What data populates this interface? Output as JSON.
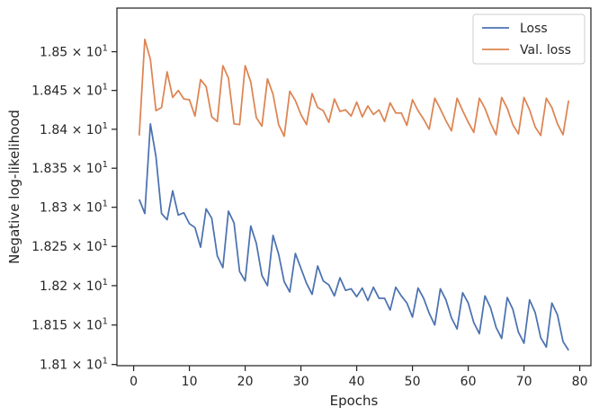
{
  "chart_data": {
    "type": "line",
    "xlabel": "Epochs",
    "ylabel": "Negative log-likelihood",
    "xlim": [
      -3,
      82
    ],
    "ylim": [
      18.0985,
      18.5565
    ],
    "y_scale": "log",
    "grid": false,
    "legend_position": "top-right",
    "x_ticks": [
      0,
      10,
      20,
      30,
      40,
      50,
      60,
      70,
      80
    ],
    "x_tick_labels": [
      "0",
      "10",
      "20",
      "30",
      "40",
      "50",
      "60",
      "70",
      "80"
    ],
    "y_ticks": [
      18.1,
      18.15,
      18.2,
      18.25,
      18.3,
      18.35,
      18.4,
      18.45,
      18.5
    ],
    "y_tick_mantissas": [
      "1.81",
      "1.815",
      "1.82",
      "1.825",
      "1.83",
      "1.835",
      "1.84",
      "1.845",
      "1.85"
    ],
    "y_tick_base": "× 10",
    "y_tick_exponent": "1",
    "x": [
      1,
      2,
      3,
      4,
      5,
      6,
      7,
      8,
      9,
      10,
      11,
      12,
      13,
      14,
      15,
      16,
      17,
      18,
      19,
      20,
      21,
      22,
      23,
      24,
      25,
      26,
      27,
      28,
      29,
      30,
      31,
      32,
      33,
      34,
      35,
      36,
      37,
      38,
      39,
      40,
      41,
      42,
      43,
      44,
      45,
      46,
      47,
      48,
      49,
      50,
      51,
      52,
      53,
      54,
      55,
      56,
      57,
      58,
      59,
      60,
      61,
      62,
      63,
      64,
      65,
      66,
      67,
      68,
      69,
      70,
      71,
      72,
      73,
      74,
      75,
      76,
      77,
      78
    ],
    "series": [
      {
        "name": "Loss",
        "color": "#4c72b0",
        "values": [
          18.31,
          18.292,
          18.407,
          18.365,
          18.292,
          18.284,
          18.321,
          18.29,
          18.293,
          18.279,
          18.274,
          18.249,
          18.298,
          18.286,
          18.238,
          18.223,
          18.295,
          18.28,
          18.218,
          18.206,
          18.276,
          18.254,
          18.213,
          18.2,
          18.264,
          18.24,
          18.205,
          18.192,
          18.241,
          18.222,
          18.203,
          18.189,
          18.225,
          18.206,
          18.201,
          18.187,
          18.21,
          18.194,
          18.196,
          18.186,
          18.197,
          18.181,
          18.198,
          18.184,
          18.184,
          18.169,
          18.198,
          18.187,
          18.178,
          18.16,
          18.197,
          18.184,
          18.165,
          18.15,
          18.196,
          18.182,
          18.159,
          18.145,
          18.191,
          18.178,
          18.153,
          18.139,
          18.187,
          18.172,
          18.147,
          18.133,
          18.185,
          18.17,
          18.141,
          18.127,
          18.182,
          18.166,
          18.134,
          18.122,
          18.178,
          18.163,
          18.129,
          18.118
        ]
      },
      {
        "name": "Val. loss",
        "color": "#dd8452",
        "values": [
          18.392,
          18.516,
          18.49,
          18.424,
          18.428,
          18.474,
          18.441,
          18.45,
          18.439,
          18.438,
          18.417,
          18.464,
          18.455,
          18.416,
          18.41,
          18.482,
          18.466,
          18.407,
          18.406,
          18.482,
          18.461,
          18.415,
          18.404,
          18.465,
          18.445,
          18.406,
          18.391,
          18.449,
          18.437,
          18.419,
          18.406,
          18.446,
          18.428,
          18.424,
          18.409,
          18.439,
          18.423,
          18.425,
          18.417,
          18.435,
          18.416,
          18.43,
          18.419,
          18.425,
          18.41,
          18.434,
          18.421,
          18.421,
          18.405,
          18.438,
          18.424,
          18.413,
          18.4,
          18.44,
          18.426,
          18.411,
          18.398,
          18.44,
          18.424,
          18.409,
          18.396,
          18.44,
          18.427,
          18.408,
          18.393,
          18.441,
          18.427,
          18.406,
          18.394,
          18.441,
          18.425,
          18.403,
          18.392,
          18.44,
          18.428,
          18.407,
          18.393,
          18.437
        ]
      }
    ]
  }
}
